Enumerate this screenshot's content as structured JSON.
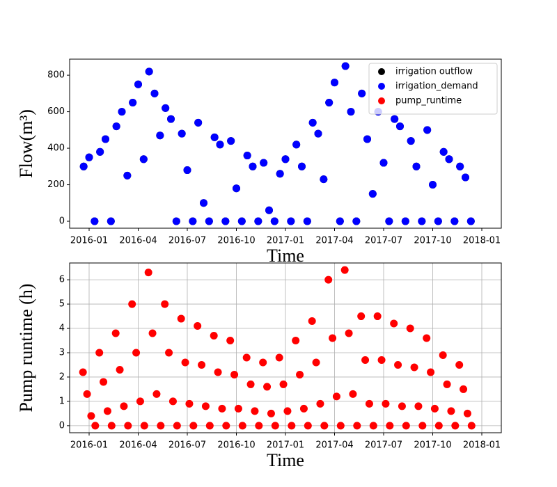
{
  "chart_data": [
    {
      "type": "scatter",
      "xlabel": "Time",
      "ylabel": "Flow(m³)",
      "x": [
        "2016-01",
        "2016-01",
        "2016-01",
        "2016-02",
        "2016-02",
        "2016-02",
        "2016-03",
        "2016-03",
        "2016-03",
        "2016-04",
        "2016-04",
        "2016-04",
        "2016-05",
        "2016-05",
        "2016-05",
        "2016-06",
        "2016-06",
        "2016-06",
        "2016-07",
        "2016-07",
        "2016-07",
        "2016-08",
        "2016-08",
        "2016-08",
        "2016-09",
        "2016-09",
        "2016-09",
        "2016-10",
        "2016-10",
        "2016-10",
        "2016-11",
        "2016-11",
        "2016-11",
        "2016-12",
        "2016-12",
        "2016-12",
        "2017-01",
        "2017-01",
        "2017-01",
        "2017-02",
        "2017-02",
        "2017-02",
        "2017-03",
        "2017-03",
        "2017-03",
        "2017-04",
        "2017-04",
        "2017-04",
        "2017-05",
        "2017-05",
        "2017-05",
        "2017-06",
        "2017-06",
        "2017-06",
        "2017-07",
        "2017-07",
        "2017-07",
        "2017-08",
        "2017-08",
        "2017-08",
        "2017-09",
        "2017-09",
        "2017-09",
        "2017-10",
        "2017-10",
        "2017-10",
        "2017-11",
        "2017-11",
        "2017-11",
        "2017-12",
        "2017-12",
        "2017-12"
      ],
      "series": [
        {
          "name": "irrigation outflow",
          "color": "#000000",
          "values": [
            300,
            350,
            0,
            380,
            450,
            0,
            520,
            600,
            250,
            650,
            750,
            340,
            820,
            700,
            470,
            620,
            560,
            0,
            480,
            280,
            0,
            540,
            100,
            0,
            460,
            420,
            0,
            440,
            180,
            0,
            360,
            300,
            0,
            320,
            60,
            0,
            260,
            340,
            0,
            420,
            300,
            0,
            540,
            480,
            230,
            650,
            760,
            0,
            850,
            600,
            0,
            700,
            450,
            150,
            600,
            320,
            0,
            560,
            520,
            0,
            440,
            300,
            0,
            500,
            200,
            0,
            380,
            340,
            0,
            300,
            240,
            0
          ]
        },
        {
          "name": "irrigation_demand",
          "color": "#0000ff",
          "values": [
            300,
            350,
            0,
            380,
            450,
            0,
            520,
            600,
            250,
            650,
            750,
            340,
            820,
            700,
            470,
            620,
            560,
            0,
            480,
            280,
            0,
            540,
            100,
            0,
            460,
            420,
            0,
            440,
            180,
            0,
            360,
            300,
            0,
            320,
            60,
            0,
            260,
            340,
            0,
            420,
            300,
            0,
            540,
            480,
            230,
            650,
            760,
            0,
            850,
            600,
            0,
            700,
            450,
            150,
            600,
            320,
            0,
            560,
            520,
            0,
            440,
            300,
            0,
            500,
            200,
            0,
            380,
            340,
            0,
            300,
            240,
            0
          ]
        },
        {
          "name": "pump_runtime",
          "color": "#ff0000",
          "values": [
            null,
            null,
            null,
            null,
            null,
            null,
            null,
            null,
            null,
            null,
            null,
            null,
            null,
            null,
            null,
            null,
            null,
            null,
            null,
            null,
            null,
            null,
            null,
            null,
            null,
            null,
            null,
            null,
            null,
            null,
            null,
            null,
            null,
            null,
            null,
            null,
            null,
            null,
            null,
            null,
            null,
            null,
            null,
            null,
            null,
            null,
            null,
            null,
            null,
            null,
            null,
            null,
            null,
            null,
            null,
            null,
            null,
            null,
            null,
            null,
            null,
            null,
            null,
            null,
            null,
            null,
            null,
            null,
            null,
            null,
            null,
            null
          ]
        }
      ],
      "xlim": [
        "2016-01",
        "2018-01"
      ],
      "xticks": [
        "2016-01",
        "2016-04",
        "2016-07",
        "2016-10",
        "2017-01",
        "2017-04",
        "2017-07",
        "2017-10",
        "2018-01"
      ],
      "ylim": [
        -38,
        888
      ],
      "yticks": [
        0,
        200,
        400,
        600,
        800
      ],
      "grid": false,
      "legend": "upper right"
    },
    {
      "type": "scatter",
      "xlabel": "Time",
      "ylabel": "Pump runtime (h)",
      "x": [
        "2016-01",
        "2016-01",
        "2016-01",
        "2016-01",
        "2016-02",
        "2016-02",
        "2016-02",
        "2016-02",
        "2016-03",
        "2016-03",
        "2016-03",
        "2016-03",
        "2016-04",
        "2016-04",
        "2016-04",
        "2016-04",
        "2016-05",
        "2016-05",
        "2016-05",
        "2016-05",
        "2016-06",
        "2016-06",
        "2016-06",
        "2016-06",
        "2016-07",
        "2016-07",
        "2016-07",
        "2016-07",
        "2016-08",
        "2016-08",
        "2016-08",
        "2016-08",
        "2016-09",
        "2016-09",
        "2016-09",
        "2016-09",
        "2016-10",
        "2016-10",
        "2016-10",
        "2016-10",
        "2016-11",
        "2016-11",
        "2016-11",
        "2016-11",
        "2016-12",
        "2016-12",
        "2016-12",
        "2016-12",
        "2017-01",
        "2017-01",
        "2017-01",
        "2017-01",
        "2017-02",
        "2017-02",
        "2017-02",
        "2017-02",
        "2017-03",
        "2017-03",
        "2017-03",
        "2017-03",
        "2017-04",
        "2017-04",
        "2017-04",
        "2017-04",
        "2017-05",
        "2017-05",
        "2017-05",
        "2017-05",
        "2017-06",
        "2017-06",
        "2017-06",
        "2017-06",
        "2017-07",
        "2017-07",
        "2017-07",
        "2017-07",
        "2017-08",
        "2017-08",
        "2017-08",
        "2017-08",
        "2017-09",
        "2017-09",
        "2017-09",
        "2017-09",
        "2017-10",
        "2017-10",
        "2017-10",
        "2017-10",
        "2017-11",
        "2017-11",
        "2017-11",
        "2017-11",
        "2017-12",
        "2017-12",
        "2017-12",
        "2017-12"
      ],
      "series": [
        {
          "name": "pump_runtime",
          "color": "#ff0000",
          "values": [
            2.2,
            1.3,
            0.4,
            0,
            3.0,
            1.8,
            0.6,
            0,
            3.8,
            2.3,
            0.8,
            0,
            5.0,
            3.0,
            1.0,
            0,
            6.3,
            3.8,
            1.3,
            0,
            5.0,
            3.0,
            1.0,
            0,
            4.4,
            2.6,
            0.9,
            0,
            4.1,
            2.5,
            0.8,
            0,
            3.7,
            2.2,
            0.7,
            0,
            3.5,
            2.1,
            0.7,
            0,
            2.8,
            1.7,
            0.6,
            0,
            2.6,
            1.6,
            0.5,
            0,
            2.8,
            1.7,
            0.6,
            0,
            3.5,
            2.1,
            0.7,
            0,
            4.3,
            2.6,
            0.9,
            0,
            6.0,
            3.6,
            1.2,
            0,
            6.4,
            3.8,
            1.3,
            0,
            4.5,
            2.7,
            0.9,
            0,
            4.5,
            2.7,
            0.9,
            0,
            4.2,
            2.5,
            0.8,
            0,
            4.0,
            2.4,
            0.8,
            0,
            3.6,
            2.2,
            0.7,
            0,
            2.9,
            1.7,
            0.6,
            0,
            2.5,
            1.5,
            0.5,
            0
          ]
        }
      ],
      "xlim": [
        "2016-01",
        "2018-01"
      ],
      "xticks": [
        "2016-01",
        "2016-04",
        "2016-07",
        "2016-10",
        "2017-01",
        "2017-04",
        "2017-07",
        "2017-10",
        "2018-01"
      ],
      "ylim": [
        -0.29,
        6.69
      ],
      "yticks": [
        0,
        1,
        2,
        3,
        4,
        5,
        6
      ],
      "grid": true
    }
  ]
}
